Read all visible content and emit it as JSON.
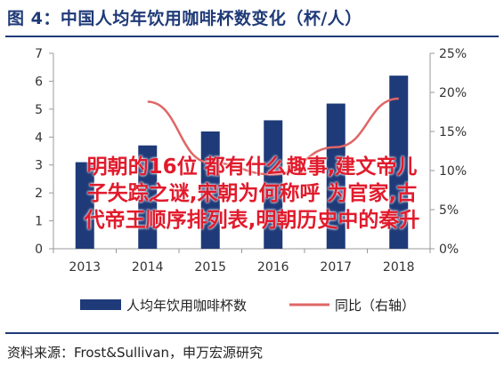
{
  "title": "图 4：中国人均年饮用咖啡杯数变化（杯/人）",
  "source": "资料来源：Frost&Sullivan，申万宏源研究",
  "overlay_lines": [
    "明朝的16位 都有什么趣事,建文帝儿",
    "子失踪之谜,宋朝为何称呼 为官家,古",
    "代帝王顺序排列表,明朝历史中的秦升"
  ],
  "colors": {
    "bar": "#1f3a78",
    "line": "#e06666",
    "title": "#1f3a78",
    "overlay": "#e11b2c"
  },
  "chart_data": {
    "type": "bar",
    "categories": [
      "2013",
      "2014",
      "2015",
      "2016",
      "2017",
      "2018"
    ],
    "series": [
      {
        "name": "人均年饮用咖啡杯数",
        "type": "bar",
        "axis": "left",
        "values": [
          3.1,
          3.7,
          4.2,
          4.6,
          5.2,
          6.2
        ]
      },
      {
        "name": "同比（右轴）",
        "type": "line",
        "axis": "right",
        "values": [
          null,
          18.8,
          11.0,
          9.5,
          13.0,
          19.2
        ]
      }
    ],
    "y_left": {
      "min": 0,
      "max": 7,
      "ticks": [
        "0",
        "1",
        "2",
        "3",
        "4",
        "5",
        "6",
        "7"
      ]
    },
    "y_right": {
      "min": 0,
      "max": 25,
      "ticks": [
        "0%",
        "5%",
        "10%",
        "15%",
        "20%",
        "25%"
      ]
    },
    "legend_position": "bottom",
    "grid": false
  }
}
